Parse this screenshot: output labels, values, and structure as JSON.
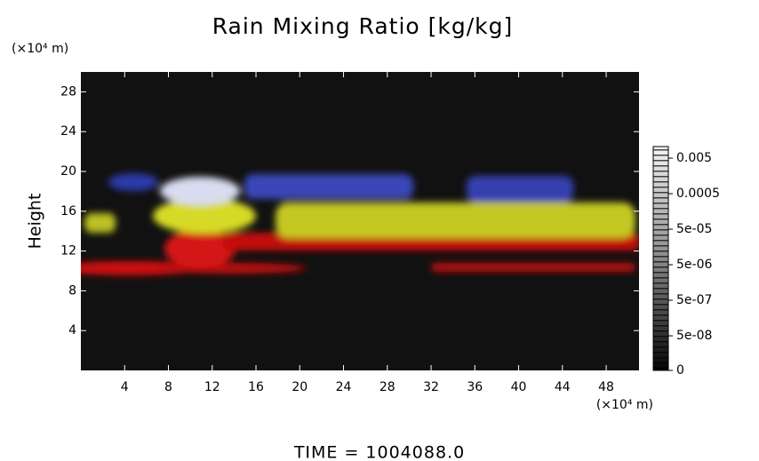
{
  "chart_data": {
    "type": "volume",
    "title": "Rain Mixing Ratio [kg/kg]",
    "y_unit": "(×10⁴ m)",
    "ylabel": "Height",
    "x_unit": "(×10⁴ m)",
    "footer": "TIME = 1004088.0",
    "xlim": [
      0,
      51
    ],
    "xticks": [
      4,
      8,
      12,
      16,
      20,
      24,
      28,
      32,
      36,
      40,
      44,
      48
    ],
    "ylim": [
      0,
      30
    ],
    "yticks": [
      4,
      8,
      12,
      16,
      20,
      24,
      28
    ],
    "colorbar_ticks": [
      0.005,
      0.0005,
      {
        "value": 5e-05,
        "label": "5e-05"
      },
      {
        "value": 5e-06,
        "label": "5e-06"
      },
      {
        "value": 5e-07,
        "label": "5e-07"
      },
      {
        "value": 5e-08,
        "label": "5e-08"
      },
      0
    ]
  }
}
